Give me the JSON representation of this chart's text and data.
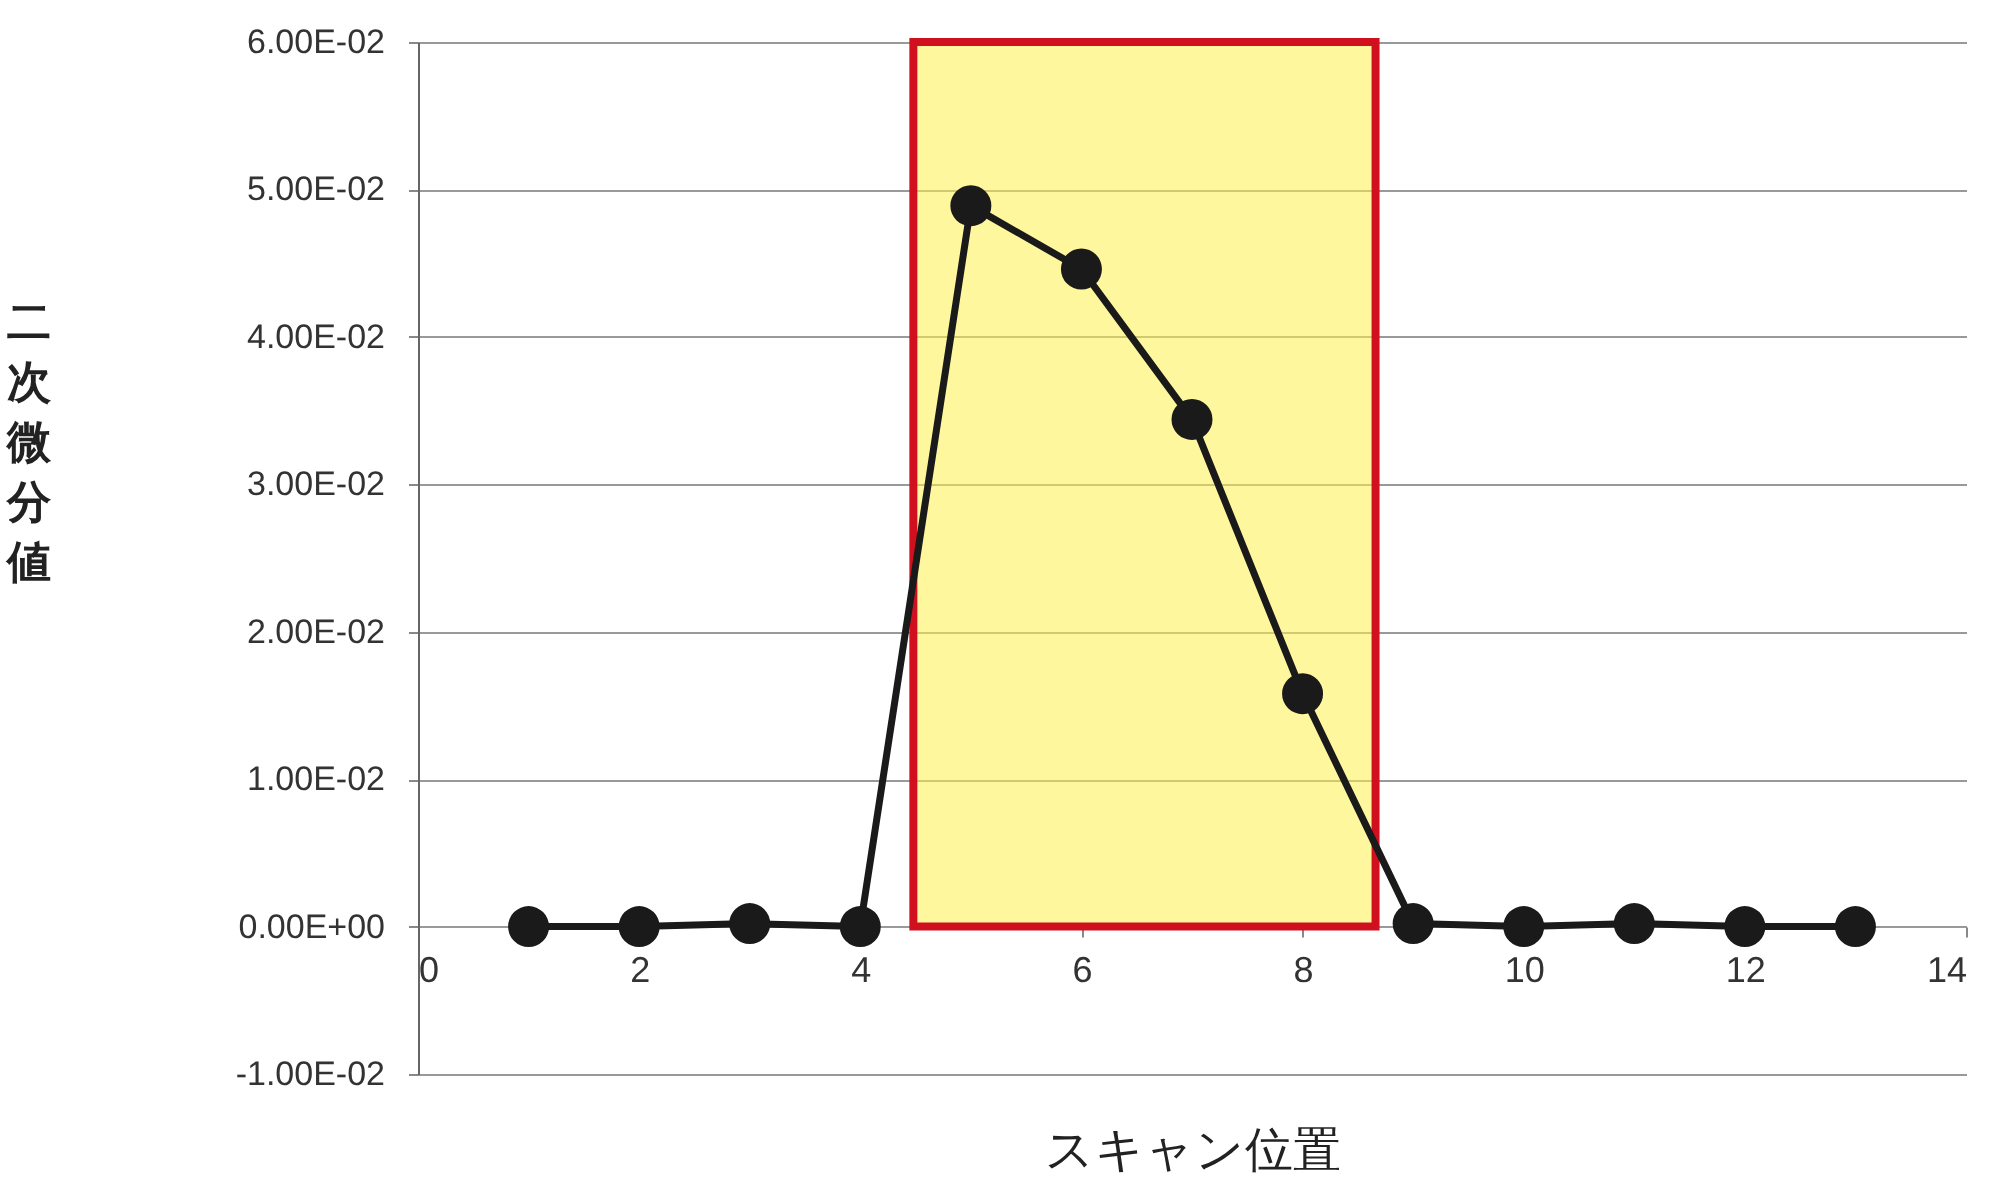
{
  "chart_data": {
    "type": "line",
    "xlabel": "スキャン位置",
    "ylabel": "二次微分値",
    "x": [
      1,
      2,
      3,
      4,
      5,
      6,
      7,
      8,
      9,
      10,
      11,
      12,
      13
    ],
    "series": [
      {
        "color": "#1a1a1a",
        "values": [
          0,
          0,
          0.0002,
          0,
          0.0489,
          0.0446,
          0.0344,
          0.0158,
          0.0002,
          0,
          0.0002,
          0,
          0
        ]
      }
    ],
    "marker": "circle",
    "line_style": "solid",
    "grid": "y",
    "xlim": [
      0,
      14
    ],
    "xticks": [
      0,
      2,
      4,
      6,
      8,
      10,
      12,
      14
    ],
    "ylim": [
      -0.01,
      0.06
    ],
    "yticks": [
      {
        "value": -0.01,
        "label": "-1.00E-02"
      },
      {
        "value": 0,
        "label": "0.00E+00"
      },
      {
        "value": 0.01,
        "label": "1.00E-02"
      },
      {
        "value": 0.02,
        "label": "2.00E-02"
      },
      {
        "value": 0.03,
        "label": "3.00E-02"
      },
      {
        "value": 0.04,
        "label": "4.00E-02"
      },
      {
        "value": 0.05,
        "label": "5.00E-02"
      },
      {
        "value": 0.06,
        "label": "6.00E-02"
      }
    ],
    "bands": [
      {
        "axis": "x",
        "from": 4.48,
        "to": 8.66,
        "color": "#fff04d"
      }
    ]
  }
}
